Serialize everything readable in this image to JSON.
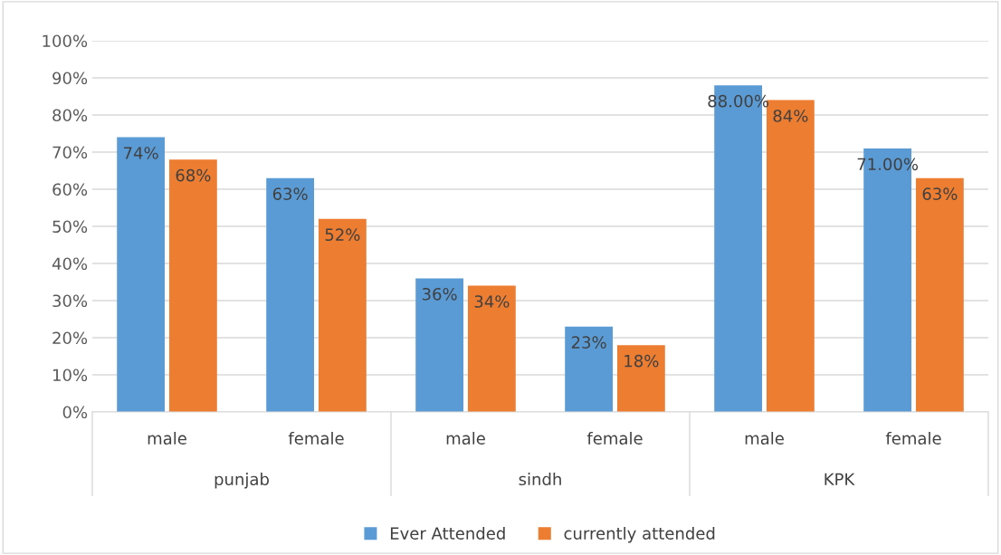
{
  "chart_data": {
    "type": "bar",
    "categories": [
      "male",
      "female",
      "male",
      "female",
      "male",
      "female"
    ],
    "series": [
      {
        "name": "Ever Attended",
        "color": "#5b9bd5",
        "values": [
          74,
          63,
          36,
          23,
          88,
          71
        ],
        "value_labels": [
          "74%",
          "63%",
          "36%",
          "23%",
          "88.00%",
          "71.00%"
        ]
      },
      {
        "name": "currently attended",
        "color": "#ed7d31",
        "values": [
          68,
          52,
          34,
          18,
          84,
          63
        ],
        "value_labels": [
          "68%",
          "52%",
          "34%",
          "18%",
          "84%",
          "63%"
        ]
      }
    ],
    "annotations": [
      "punjab",
      "sindh",
      "KPK"
    ],
    "ylim": [
      0,
      100
    ],
    "yticks": [
      {
        "value": 0,
        "label": "0%"
      },
      {
        "value": 10,
        "label": "10%"
      },
      {
        "value": 20,
        "label": "20%"
      },
      {
        "value": 30,
        "label": "30%"
      },
      {
        "value": 40,
        "label": "40%"
      },
      {
        "value": 50,
        "label": "50%"
      },
      {
        "value": 60,
        "label": "60%"
      },
      {
        "value": 70,
        "label": "70%"
      },
      {
        "value": 80,
        "label": "80%"
      },
      {
        "value": 90,
        "label": "90%"
      },
      {
        "value": 100,
        "label": "100%"
      }
    ],
    "grid": "y",
    "legend": "bottom"
  }
}
